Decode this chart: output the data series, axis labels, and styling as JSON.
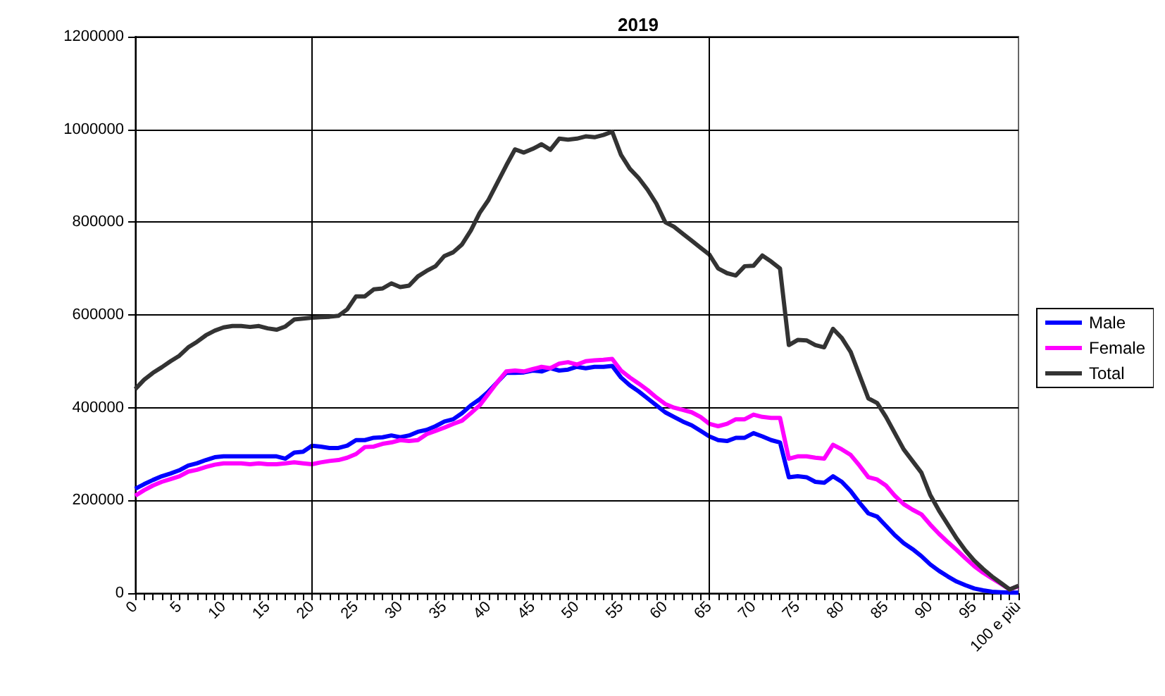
{
  "chart_data": {
    "type": "line",
    "title": "2019",
    "categories": [
      "0",
      null,
      null,
      null,
      null,
      "5",
      null,
      null,
      null,
      null,
      "10",
      null,
      null,
      null,
      null,
      "15",
      null,
      null,
      null,
      null,
      "20",
      null,
      null,
      null,
      null,
      "25",
      null,
      null,
      null,
      null,
      "30",
      null,
      null,
      null,
      null,
      "35",
      null,
      null,
      null,
      null,
      "40",
      null,
      null,
      null,
      null,
      "45",
      null,
      null,
      null,
      null,
      "50",
      null,
      null,
      null,
      null,
      "55",
      null,
      null,
      null,
      null,
      "60",
      null,
      null,
      null,
      null,
      "65",
      null,
      null,
      null,
      null,
      "70",
      null,
      null,
      null,
      null,
      "75",
      null,
      null,
      null,
      null,
      "80",
      null,
      null,
      null,
      null,
      "85",
      null,
      null,
      null,
      null,
      "90",
      null,
      null,
      null,
      null,
      "95",
      null,
      null,
      null,
      null,
      "100 e più"
    ],
    "series": [
      {
        "name": "Male",
        "color": "#0000ff",
        "values": [
          225000,
          235000,
          244000,
          252000,
          258000,
          265000,
          275000,
          280000,
          287000,
          293000,
          295000,
          295000,
          295000,
          295000,
          295000,
          295000,
          295000,
          290000,
          303000,
          305000,
          318000,
          316000,
          313000,
          313000,
          318000,
          330000,
          330000,
          335000,
          336000,
          340000,
          336000,
          340000,
          348000,
          352000,
          360000,
          370000,
          375000,
          388000,
          405000,
          418000,
          435000,
          455000,
          475000,
          475000,
          476000,
          480000,
          478000,
          485000,
          480000,
          482000,
          488000,
          485000,
          488000,
          488000,
          490000,
          465000,
          448000,
          435000,
          420000,
          405000,
          390000,
          380000,
          370000,
          362000,
          350000,
          338000,
          330000,
          328000,
          335000,
          335000,
          345000,
          338000,
          330000,
          325000,
          250000,
          252000,
          250000,
          240000,
          238000,
          252000,
          240000,
          220000,
          195000,
          172000,
          165000,
          145000,
          125000,
          108000,
          95000,
          80000,
          62000,
          48000,
          36000,
          25000,
          17000,
          10000,
          6000,
          3000,
          2000,
          1000,
          1000
        ]
      },
      {
        "name": "Female",
        "color": "#ff00ff",
        "values": [
          210000,
          222000,
          232000,
          240000,
          246000,
          252000,
          262000,
          266000,
          272000,
          277000,
          280000,
          280000,
          280000,
          278000,
          280000,
          278000,
          278000,
          280000,
          282000,
          280000,
          278000,
          282000,
          285000,
          287000,
          292000,
          300000,
          315000,
          316000,
          322000,
          325000,
          330000,
          328000,
          330000,
          343000,
          350000,
          357000,
          365000,
          372000,
          388000,
          405000,
          430000,
          455000,
          478000,
          480000,
          478000,
          483000,
          488000,
          485000,
          495000,
          498000,
          493000,
          500000,
          502000,
          503000,
          505000,
          480000,
          465000,
          452000,
          438000,
          422000,
          408000,
          400000,
          395000,
          390000,
          380000,
          365000,
          360000,
          365000,
          375000,
          375000,
          385000,
          380000,
          378000,
          378000,
          290000,
          295000,
          295000,
          292000,
          290000,
          320000,
          310000,
          298000,
          275000,
          250000,
          245000,
          232000,
          210000,
          192000,
          180000,
          170000,
          148000,
          128000,
          110000,
          93000,
          75000,
          58000,
          44000,
          32000,
          20000,
          8000,
          15000
        ]
      },
      {
        "name": "Total",
        "color": "#333333",
        "values": [
          440000,
          460000,
          475000,
          487000,
          500000,
          512000,
          530000,
          542000,
          556000,
          566000,
          573000,
          576000,
          576000,
          574000,
          576000,
          571000,
          568000,
          575000,
          590000,
          592000,
          594000,
          595000,
          596000,
          598000,
          612000,
          640000,
          640000,
          655000,
          657000,
          668000,
          660000,
          663000,
          683000,
          695000,
          705000,
          727000,
          735000,
          752000,
          782000,
          820000,
          848000,
          885000,
          922000,
          957000,
          950000,
          958000,
          968000,
          956000,
          980000,
          978000,
          980000,
          985000,
          983000,
          988000,
          995000,
          945000,
          915000,
          895000,
          870000,
          840000,
          800000,
          790000,
          775000,
          760000,
          745000,
          730000,
          700000,
          690000,
          685000,
          705000,
          706000,
          728000,
          715000,
          700000,
          535000,
          546000,
          545000,
          535000,
          530000,
          570000,
          550000,
          520000,
          470000,
          420000,
          410000,
          380000,
          345000,
          310000,
          285000,
          260000,
          212000,
          178000,
          148000,
          118000,
          92000,
          70000,
          52000,
          36000,
          22000,
          8000,
          16000
        ]
      }
    ],
    "ylim": [
      0,
      1200000
    ],
    "yticks": [
      0,
      200000,
      400000,
      600000,
      800000,
      1000000,
      1200000
    ],
    "grid": "y",
    "legend": "right",
    "marker": "none",
    "line_style": "solid",
    "ref_lines": [
      {
        "axis": "x",
        "value": "20",
        "color": "#000000"
      },
      {
        "axis": "x",
        "value": "65",
        "color": "#000000"
      }
    ]
  }
}
